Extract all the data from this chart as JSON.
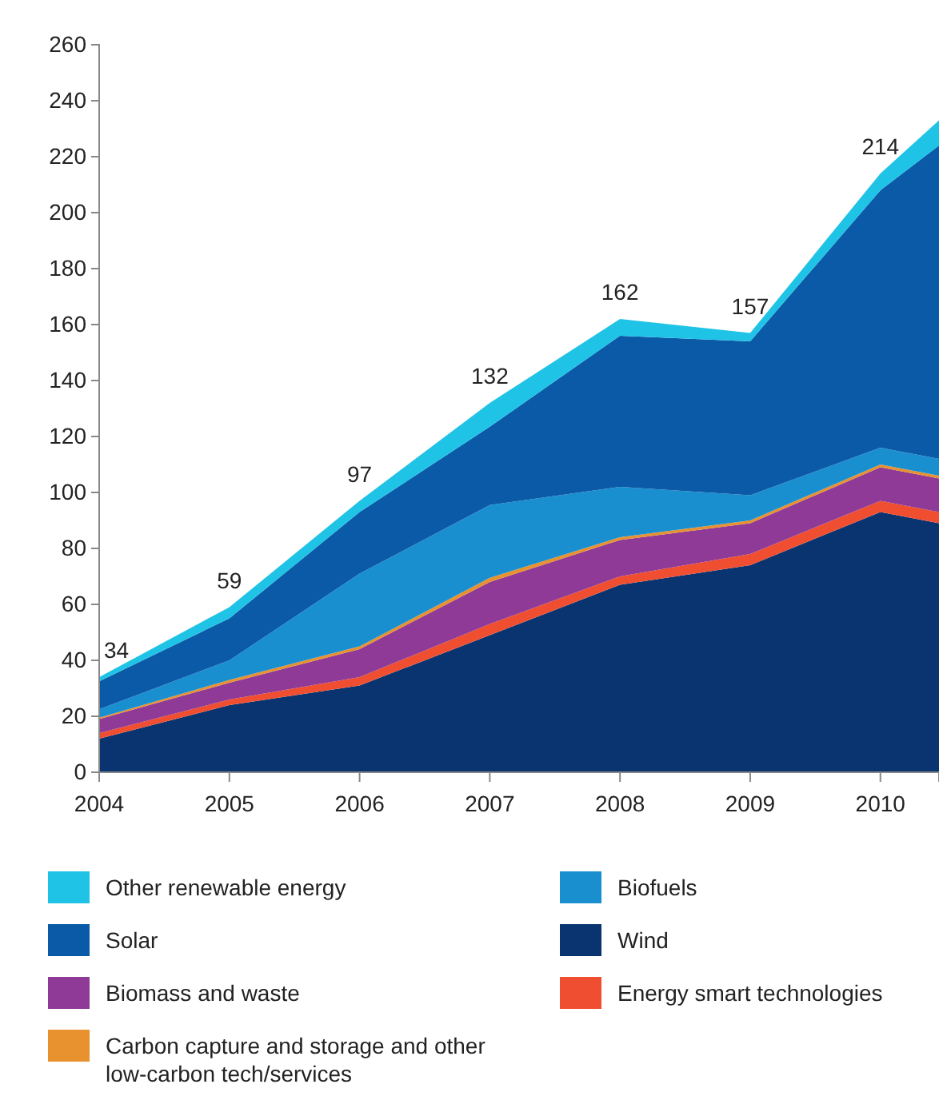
{
  "chart_data": {
    "type": "area",
    "stacked": true,
    "x": [
      2004,
      2005,
      2006,
      2007,
      2008,
      2009,
      2010,
      2010.45
    ],
    "xlim": [
      2004,
      2010.45
    ],
    "xticks": [
      2004,
      2005,
      2006,
      2007,
      2008,
      2009,
      2010
    ],
    "ylim": [
      0,
      260
    ],
    "yticks": [
      0,
      20,
      40,
      60,
      80,
      100,
      120,
      140,
      160,
      180,
      200,
      220,
      240,
      260
    ],
    "grid": false,
    "legend": "bottom",
    "series": [
      {
        "name": "Wind",
        "color": "#0a3470",
        "values": [
          12,
          24,
          31,
          49,
          67,
          74,
          93,
          89
        ]
      },
      {
        "name": "Energy smart technologies",
        "color": "#f04e30",
        "values": [
          2,
          2,
          3,
          4,
          3,
          4,
          4,
          4
        ]
      },
      {
        "name": "Biomass and waste",
        "color": "#8e3a96",
        "values": [
          5,
          6,
          10,
          15,
          13,
          11,
          12,
          12
        ]
      },
      {
        "name": "Carbon capture and storage and other low-carbon tech/services",
        "color": "#e8912f",
        "values": [
          0.5,
          1,
          1,
          1.5,
          1,
          1,
          1,
          1
        ]
      },
      {
        "name": "Biofuels",
        "color": "#1a8fcf",
        "values": [
          3,
          7,
          26,
          26,
          18,
          9,
          6,
          6
        ]
      },
      {
        "name": "Solar",
        "color": "#0a5aa8",
        "values": [
          10,
          15,
          22,
          28,
          54,
          55,
          92,
          112
        ]
      },
      {
        "name": "Other renewable energy",
        "color": "#1fc3e6",
        "values": [
          1.5,
          4,
          4,
          8.5,
          6,
          3,
          6,
          9
        ]
      }
    ],
    "annotations": [
      {
        "text": "34",
        "x": 2004,
        "y": 34
      },
      {
        "text": "59",
        "x": 2005,
        "y": 59
      },
      {
        "text": "97",
        "x": 2006,
        "y": 97
      },
      {
        "text": "132",
        "x": 2007,
        "y": 132
      },
      {
        "text": "162",
        "x": 2008,
        "y": 162
      },
      {
        "text": "157",
        "x": 2009,
        "y": 157
      },
      {
        "text": "214",
        "x": 2010,
        "y": 214
      }
    ]
  }
}
